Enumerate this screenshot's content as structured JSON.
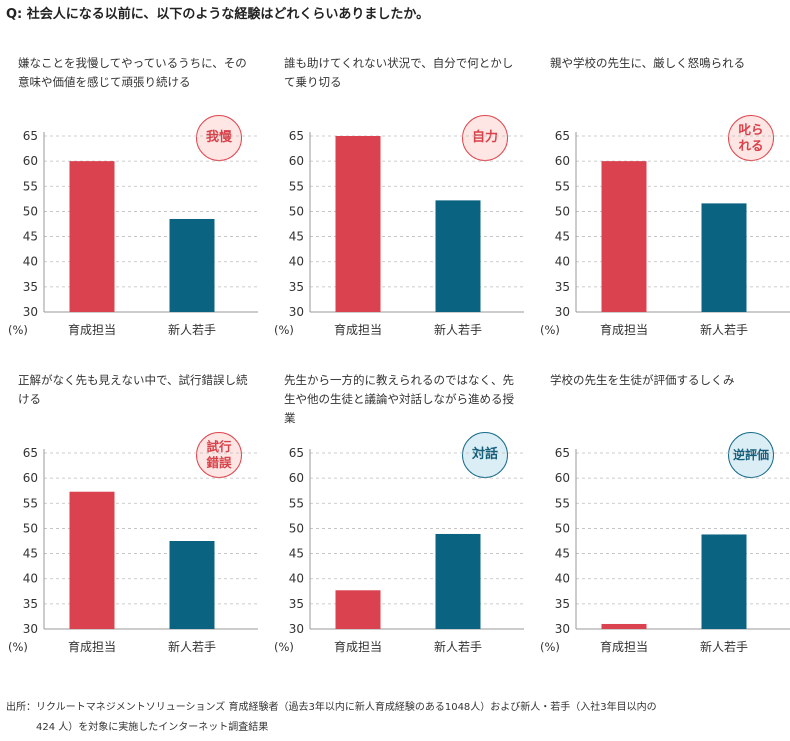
{
  "question": "Q: 社会人になる以前に、以下のような経験はどれくらいありましたか。",
  "colors": {
    "trainer": "#d9424e",
    "newcomer": "#0b6382",
    "badge_red": "#e0474f",
    "badge_blue": "#1a6d8a"
  },
  "unit_label": "(%)",
  "source": {
    "line1": "出所：リクルートマネジメントソリューションズ 育成経験者（過去3年以内に新人育成経験のある1048人）および新人・若手（入社3年目以内の",
    "line2": "424 人）を対象に実施したインターネット調査結果"
  },
  "panels": [
    {
      "caption": "嫌なことを我慢してやっているうちに、その意味や価値を感じて頑張り続ける",
      "badge": "我慢",
      "badge_color": "red"
    },
    {
      "caption": "誰も助けてくれない状況で、自分で何とかして乗り切る",
      "badge": "自力",
      "badge_color": "red"
    },
    {
      "caption": "親や学校の先生に、厳しく怒鳴られる",
      "badge": "叱られる",
      "badge_color": "red"
    },
    {
      "caption": "正解がなく先も見えない中で、試行錯誤し続ける",
      "badge": "試行錯誤",
      "badge_color": "red"
    },
    {
      "caption": "先生から一方的に教えられるのではなく、先生や他の生徒と議論や対話しながら進める授業",
      "badge": "対話",
      "badge_color": "blue"
    },
    {
      "caption": "学校の先生を生徒が評価するしくみ",
      "badge": "逆評価",
      "badge_color": "blue"
    }
  ],
  "chart_data": [
    {
      "type": "bar",
      "categories": [
        "育成担当",
        "新人若手"
      ],
      "values": [
        60.0,
        48.5
      ],
      "ylim": [
        30,
        65
      ],
      "yticks": [
        30,
        35,
        40,
        45,
        50,
        55,
        60,
        65
      ],
      "ylabel": "(%)",
      "grid": true
    },
    {
      "type": "bar",
      "categories": [
        "育成担当",
        "新人若手"
      ],
      "values": [
        65.0,
        52.2
      ],
      "ylim": [
        30,
        65
      ],
      "yticks": [
        30,
        35,
        40,
        45,
        50,
        55,
        60,
        65
      ],
      "ylabel": "(%)",
      "grid": true
    },
    {
      "type": "bar",
      "categories": [
        "育成担当",
        "新人若手"
      ],
      "values": [
        60.0,
        51.6
      ],
      "ylim": [
        30,
        65
      ],
      "yticks": [
        30,
        35,
        40,
        45,
        50,
        55,
        60,
        65
      ],
      "ylabel": "(%)",
      "grid": true
    },
    {
      "type": "bar",
      "categories": [
        "育成担当",
        "新人若手"
      ],
      "values": [
        57.3,
        47.5
      ],
      "ylim": [
        30,
        65
      ],
      "yticks": [
        30,
        35,
        40,
        45,
        50,
        55,
        60,
        65
      ],
      "ylabel": "(%)",
      "grid": true
    },
    {
      "type": "bar",
      "categories": [
        "育成担当",
        "新人若手"
      ],
      "values": [
        37.7,
        48.9
      ],
      "ylim": [
        30,
        65
      ],
      "yticks": [
        30,
        35,
        40,
        45,
        50,
        55,
        60,
        65
      ],
      "ylabel": "(%)",
      "grid": true
    },
    {
      "type": "bar",
      "categories": [
        "育成担当",
        "新人若手"
      ],
      "values": [
        31.0,
        48.8
      ],
      "ylim": [
        30,
        65
      ],
      "yticks": [
        30,
        35,
        40,
        45,
        50,
        55,
        60,
        65
      ],
      "ylabel": "(%)",
      "grid": true
    }
  ]
}
